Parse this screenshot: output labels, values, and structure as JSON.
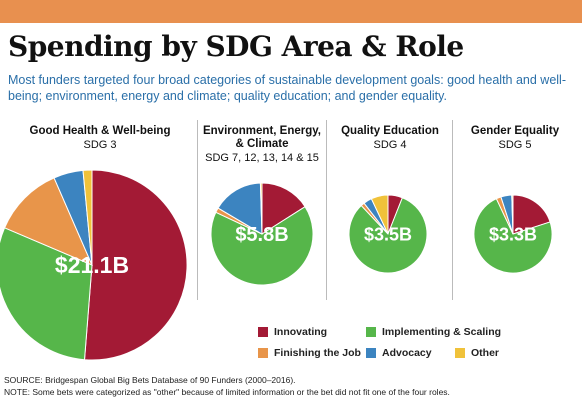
{
  "header": {
    "title": "Spending by SDG Area & Role",
    "subtitle": "Most funders targeted four broad categories of sustainable development goals: good health and well-being; environment, energy and climate; quality education; and gender equality."
  },
  "colors": {
    "Innovating": "#a31a35",
    "Implementing & Scaling": "#56b64a",
    "Finishing the Job": "#e8954a",
    "Advocacy": "#3c84c0",
    "Other": "#f0c23a",
    "accent_bar": "#e8904f"
  },
  "chart_data": [
    {
      "type": "pie",
      "title": "Good Health & Well-being",
      "subtitle": "SDG 3",
      "total_label": "$21.1B",
      "categories": [
        "Innovating",
        "Implementing & Scaling",
        "Finishing the Job",
        "Advocacy",
        "Other"
      ],
      "values": [
        51,
        30,
        12,
        5,
        1.5
      ]
    },
    {
      "type": "pie",
      "title": "Environment, Energy, & Climate",
      "subtitle": "SDG 7, 12, 13, 14 & 15",
      "total_label": "$5.8B",
      "categories": [
        "Innovating",
        "Implementing & Scaling",
        "Finishing the Job",
        "Advocacy",
        "Other"
      ],
      "values": [
        16,
        66,
        1.5,
        16,
        0.5
      ]
    },
    {
      "type": "pie",
      "title": "Quality Education",
      "subtitle": "SDG 4",
      "total_label": "$3.5B",
      "categories": [
        "Innovating",
        "Implementing & Scaling",
        "Finishing the Job",
        "Advocacy",
        "Other"
      ],
      "values": [
        6,
        82,
        1.5,
        3.5,
        7
      ]
    },
    {
      "type": "pie",
      "title": "Gender Equality",
      "subtitle": "SDG 5",
      "total_label": "$3.3B",
      "categories": [
        "Innovating",
        "Implementing & Scaling",
        "Finishing the Job",
        "Advocacy",
        "Other"
      ],
      "values": [
        20,
        73,
        2,
        4.5,
        0.5
      ]
    }
  ],
  "legend": [
    {
      "label": "Innovating",
      "key": "Innovating"
    },
    {
      "label": "Implementing & Scaling",
      "key": "Implementing & Scaling"
    },
    {
      "label": "Finishing the Job",
      "key": "Finishing the Job"
    },
    {
      "label": "Advocacy",
      "key": "Advocacy"
    },
    {
      "label": "Other",
      "key": "Other"
    }
  ],
  "footer": {
    "source": "SOURCE: Bridgespan Global Big Bets Database of 90 Funders (2000–2016).",
    "note": "NOTE: Some bets were categorized as \"other\" because of limited information or the bet did not fit one of the four roles."
  }
}
